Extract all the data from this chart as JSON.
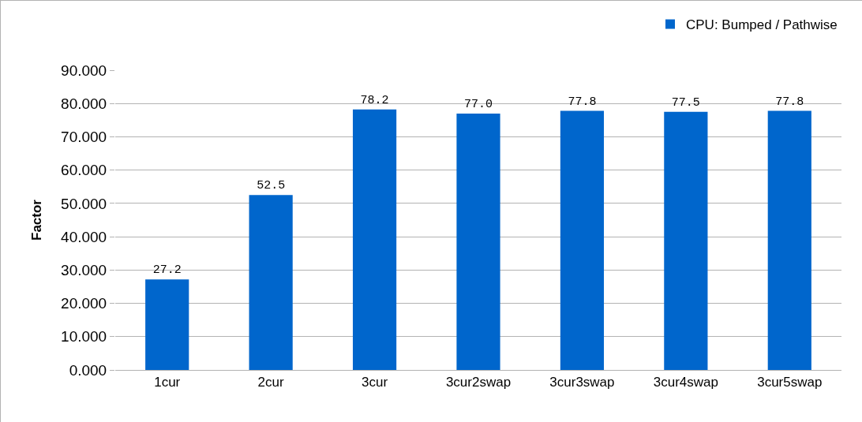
{
  "chart_data": {
    "type": "bar",
    "ylabel": "Factor",
    "categories": [
      "1cur",
      "2cur",
      "3cur",
      "3cur2swap",
      "3cur3swap",
      "3cur4swap",
      "3cur5swap"
    ],
    "series": [
      {
        "name": "CPU: Bumped / Pathwise",
        "color": "#0066cc",
        "values": [
          27.2,
          52.5,
          78.2,
          77.0,
          77.8,
          77.5,
          77.8
        ],
        "value_labels": [
          "27.2",
          "52.5",
          "78.2",
          "77.0",
          "77.8",
          "77.5",
          "77.8"
        ]
      }
    ],
    "ylim": [
      0,
      90
    ],
    "yticks": [
      {
        "value": 0,
        "label": "0.000"
      },
      {
        "value": 10,
        "label": "10.000"
      },
      {
        "value": 20,
        "label": "20.000"
      },
      {
        "value": 30,
        "label": "30.000"
      },
      {
        "value": 40,
        "label": "40.000"
      },
      {
        "value": 50,
        "label": "50.000"
      },
      {
        "value": 60,
        "label": "60.000"
      },
      {
        "value": 70,
        "label": "70.000"
      },
      {
        "value": 80,
        "label": "80.000"
      },
      {
        "value": 90,
        "label": "90.000"
      }
    ],
    "grid": "y",
    "legend": "top right"
  }
}
